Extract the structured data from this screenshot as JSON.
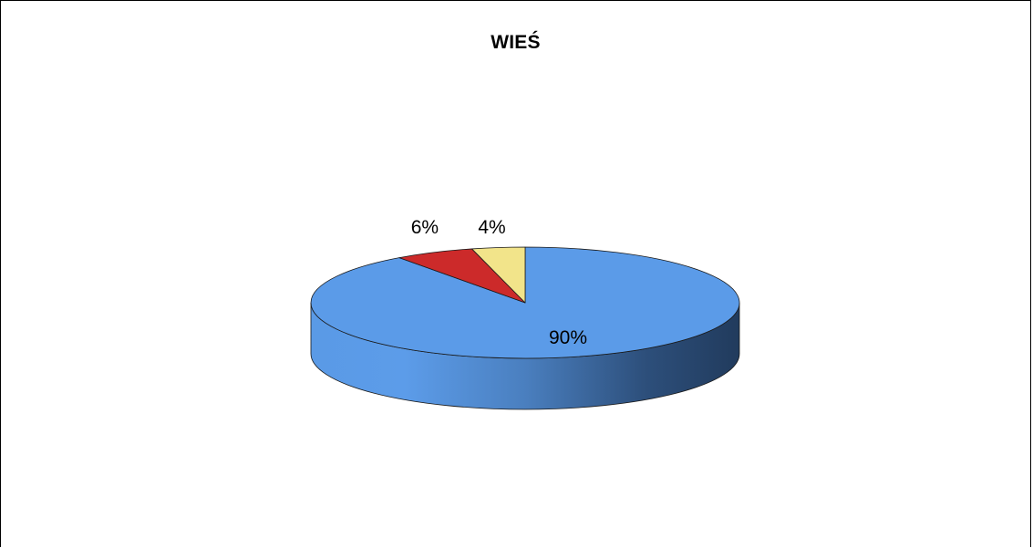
{
  "chart_data": {
    "type": "pie",
    "style": "3d",
    "title": "WIEŚ",
    "slices": [
      {
        "value": 90,
        "label": "90%",
        "color": "#5b9be8"
      },
      {
        "value": 6,
        "label": "6%",
        "color": "#cc2a2a"
      },
      {
        "value": 4,
        "label": "4%",
        "color": "#f2e48a"
      }
    ],
    "legend": "none",
    "grid": false
  }
}
